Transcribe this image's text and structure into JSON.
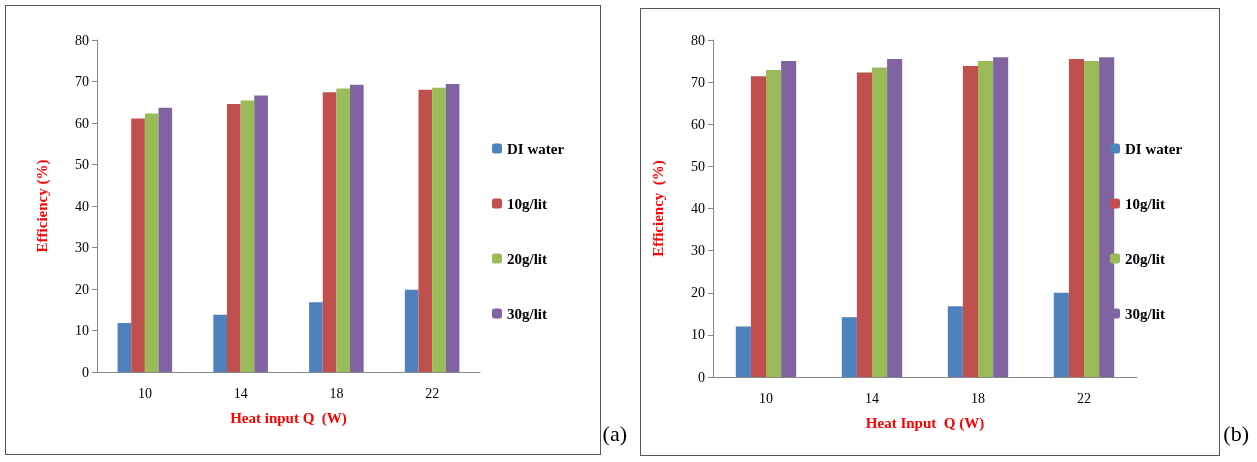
{
  "chart_data": [
    {
      "type": "bar",
      "categories": [
        "10",
        "14",
        "18",
        "22"
      ],
      "xlabel": "Heat input Q  (W)",
      "ylabel": "Efficiency (%)",
      "ylim": [
        0,
        80
      ],
      "yticks": [
        0,
        10,
        20,
        30,
        40,
        50,
        60,
        70,
        80
      ],
      "grid": false,
      "legend": "right",
      "annotations": [
        "(a)"
      ],
      "series": [
        {
          "name": "DI water",
          "color": "#4f81bd",
          "values": [
            11.8,
            13.8,
            16.8,
            19.8
          ]
        },
        {
          "name": "10g/lit",
          "color": "#c0504d",
          "values": [
            61.1,
            64.6,
            67.4,
            68.0
          ]
        },
        {
          "name": "20g/lit",
          "color": "#9bbb59",
          "values": [
            62.3,
            65.4,
            68.3,
            68.5
          ]
        },
        {
          "name": "30g/lit",
          "color": "#8064a2",
          "values": [
            63.7,
            66.6,
            69.2,
            69.4
          ]
        }
      ]
    },
    {
      "type": "bar",
      "categories": [
        "10",
        "14",
        "18",
        "22"
      ],
      "xlabel": "Heat Input  Q (W)",
      "ylabel": "Efficiency  (%)",
      "ylim": [
        0,
        80
      ],
      "yticks": [
        0,
        10,
        20,
        30,
        40,
        50,
        60,
        70,
        80
      ],
      "grid": false,
      "legend": "right",
      "annotations": [
        "(b)"
      ],
      "series": [
        {
          "name": "DI water",
          "color": "#4f81bd",
          "values": [
            12.0,
            14.2,
            16.8,
            20.0
          ]
        },
        {
          "name": "10g/lit",
          "color": "#c0504d",
          "values": [
            71.4,
            72.3,
            73.8,
            75.5
          ]
        },
        {
          "name": "20g/lit",
          "color": "#9bbb59",
          "values": [
            72.9,
            73.5,
            75.0,
            75.0
          ]
        },
        {
          "name": "30g/lit",
          "color": "#8064a2",
          "values": [
            75.0,
            75.5,
            75.9,
            75.9
          ]
        }
      ]
    }
  ]
}
